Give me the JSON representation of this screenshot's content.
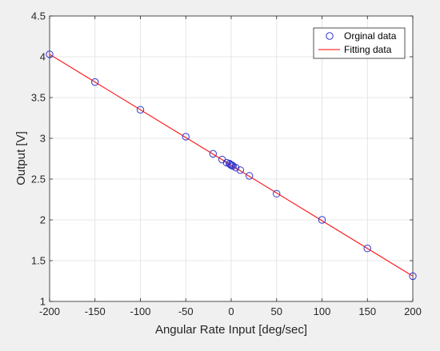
{
  "chart_data": {
    "type": "scatter",
    "xlabel": "Angular Rate Input [deg/sec]",
    "ylabel": "Output [V]",
    "xlim": [
      -200,
      200
    ],
    "ylim": [
      1,
      4.5
    ],
    "xticks": [
      -200,
      -150,
      -100,
      -50,
      0,
      50,
      100,
      150,
      200
    ],
    "yticks": [
      1,
      1.5,
      2,
      2.5,
      3,
      3.5,
      4,
      4.5
    ],
    "xtick_labels": [
      "-200",
      "-150",
      "-100",
      "-50",
      "0",
      "50",
      "100",
      "150",
      "200"
    ],
    "ytick_labels": [
      "1",
      "1.5",
      "2",
      "2.5",
      "3",
      "3.5",
      "4",
      "4.5"
    ],
    "grid": true,
    "legend_position": "top-right",
    "series": [
      {
        "name": "Orginal data",
        "kind": "markers",
        "marker": "circle",
        "color": "#3333cc",
        "x": [
          -200,
          -150,
          -100,
          -50,
          -20,
          -10,
          -5,
          -2,
          -1,
          0,
          1,
          2,
          5,
          10,
          20,
          50,
          100,
          150,
          200
        ],
        "y": [
          4.03,
          3.69,
          3.35,
          3.02,
          2.81,
          2.74,
          2.7,
          2.69,
          2.68,
          2.67,
          2.67,
          2.66,
          2.64,
          2.61,
          2.54,
          2.32,
          2.0,
          1.65,
          1.31
        ]
      },
      {
        "name": "Fitting data",
        "kind": "line",
        "color": "#ff0000",
        "x": [
          -200,
          200
        ],
        "y": [
          4.03,
          1.31
        ]
      }
    ]
  }
}
